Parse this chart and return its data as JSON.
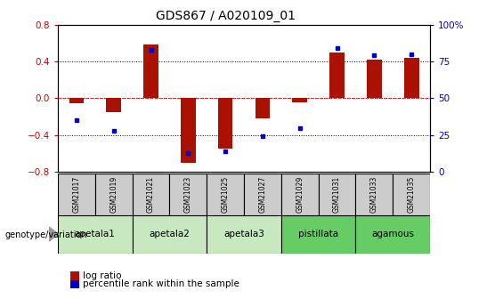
{
  "title": "GDS867 / A020109_01",
  "samples": [
    "GSM21017",
    "GSM21019",
    "GSM21021",
    "GSM21023",
    "GSM21025",
    "GSM21027",
    "GSM21029",
    "GSM21031",
    "GSM21033",
    "GSM21035"
  ],
  "log_ratio": [
    -0.05,
    -0.15,
    0.58,
    -0.7,
    -0.55,
    -0.22,
    -0.04,
    0.5,
    0.42,
    0.44
  ],
  "percentile_rank": [
    35,
    28,
    83,
    13,
    14,
    24,
    30,
    84,
    79,
    80
  ],
  "groups": [
    {
      "name": "apetala1",
      "samples": [
        "GSM21017",
        "GSM21019"
      ],
      "color": "#c8e8c0"
    },
    {
      "name": "apetala2",
      "samples": [
        "GSM21021",
        "GSM21023"
      ],
      "color": "#c8e8c0"
    },
    {
      "name": "apetala3",
      "samples": [
        "GSM21025",
        "GSM21027"
      ],
      "color": "#c8e8c0"
    },
    {
      "name": "pistillata",
      "samples": [
        "GSM21029",
        "GSM21031"
      ],
      "color": "#66cc66"
    },
    {
      "name": "agamous",
      "samples": [
        "GSM21033",
        "GSM21035"
      ],
      "color": "#66cc66"
    }
  ],
  "ylim_left": [
    -0.8,
    0.8
  ],
  "ylim_right": [
    0,
    100
  ],
  "yticks_left": [
    -0.8,
    -0.4,
    0.0,
    0.4,
    0.8
  ],
  "yticks_right": [
    0,
    25,
    50,
    75,
    100
  ],
  "bar_color": "#aa1100",
  "dot_color": "#0000cc",
  "sample_box_color": "#cccccc",
  "background_color": "#ffffff",
  "label_log_ratio": "log ratio",
  "label_percentile": "percentile rank within the sample",
  "genotype_label": "genotype/variation",
  "tick_label_color_left": "#cc0000",
  "tick_label_color_right": "#0000cc",
  "bar_width": 0.4
}
